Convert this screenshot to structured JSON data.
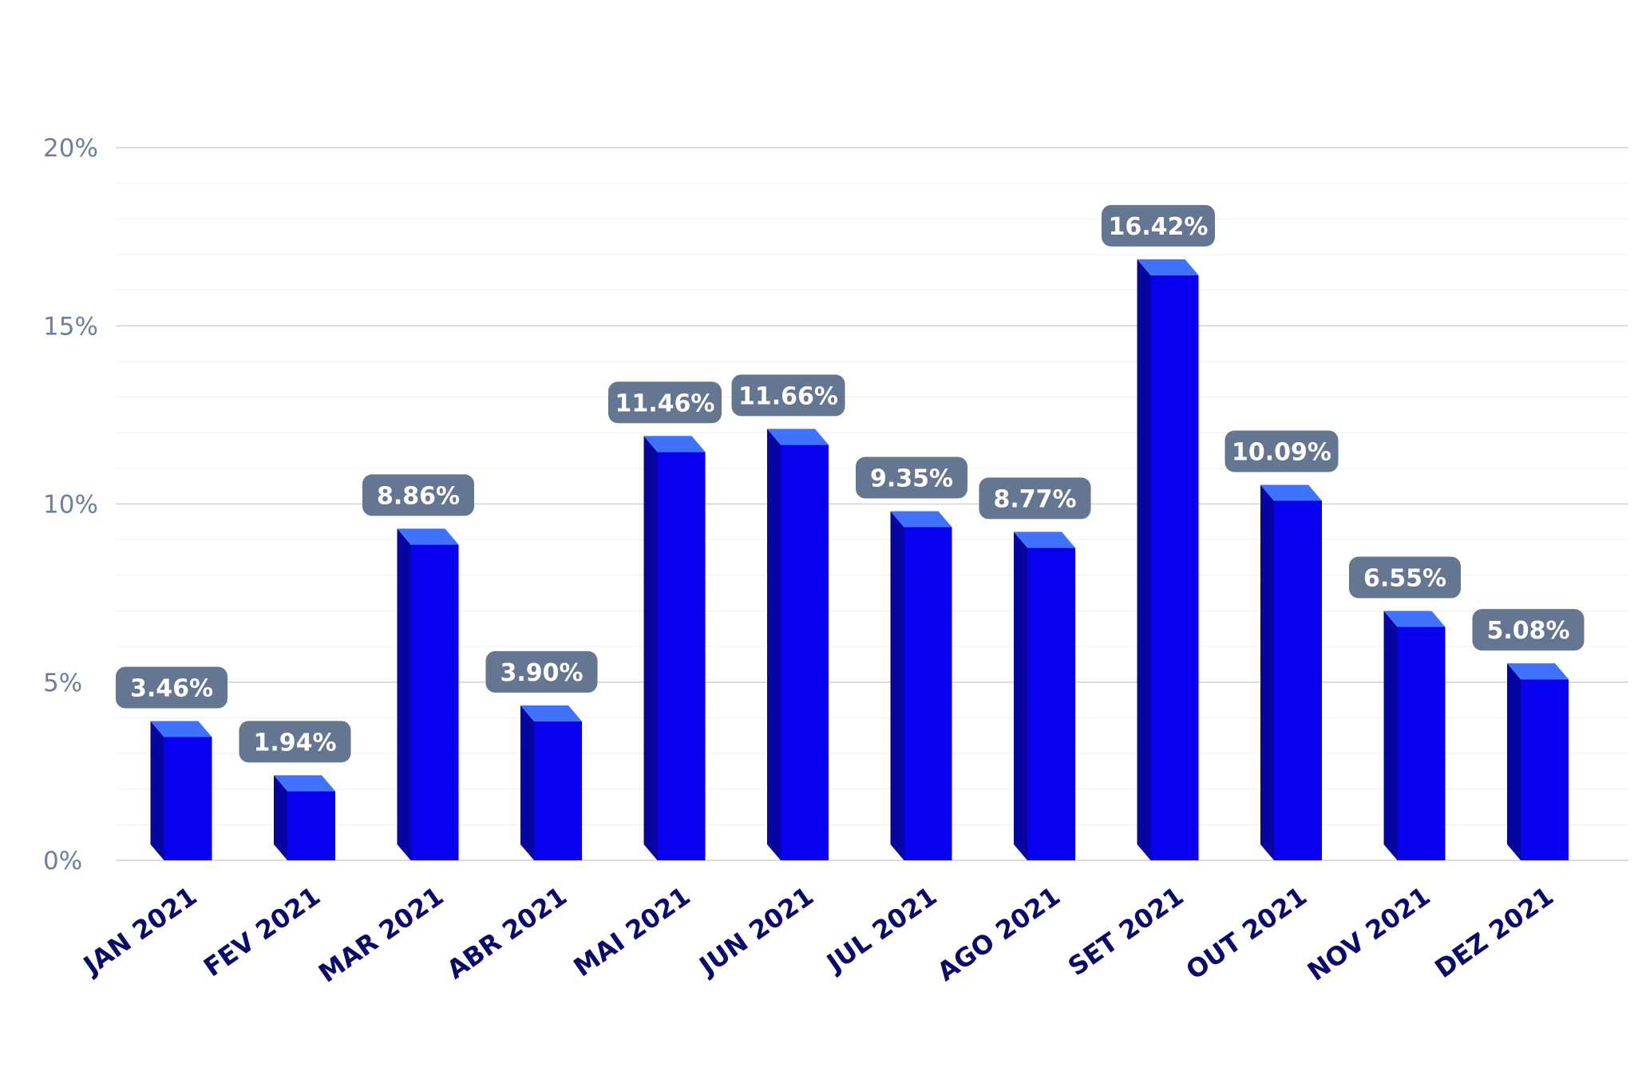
{
  "chart_data": {
    "type": "bar",
    "title": "",
    "xlabel": "",
    "ylabel": "",
    "categories": [
      "JAN 2021",
      "FEV 2021",
      "MAR 2021",
      "ABR 2021",
      "MAI 2021",
      "JUN 2021",
      "JUL 2021",
      "AGO 2021",
      "SET 2021",
      "OUT 2021",
      "NOV 2021",
      "DEZ 2021"
    ],
    "values": [
      3.46,
      1.94,
      8.86,
      3.9,
      11.46,
      11.66,
      9.35,
      8.77,
      16.42,
      10.09,
      6.55,
      5.08
    ],
    "data_labels": [
      "3.46%",
      "1.94%",
      "8.86%",
      "3.90%",
      "11.46%",
      "11.66%",
      "9.35%",
      "8.77%",
      "16.42%",
      "10.09%",
      "6.55%",
      "5.08%"
    ],
    "ylim": [
      0,
      20
    ],
    "yticks": [
      0,
      5,
      10,
      15,
      20
    ],
    "ytick_labels": [
      "0%",
      "5%",
      "10%",
      "15%",
      "20%"
    ],
    "grid": true,
    "legend": "none",
    "colors": {
      "bar_front": "#0a00f0",
      "bar_side": "#06059f",
      "bar_top": "#3f73ff",
      "label_box": "#657692",
      "label_text": "#ffffff",
      "x_tick_text": "#0b0a6b",
      "y_tick_text": "#6e7fa0",
      "grid_major": "#d2d2d2",
      "grid_minor": "#efefef"
    }
  }
}
